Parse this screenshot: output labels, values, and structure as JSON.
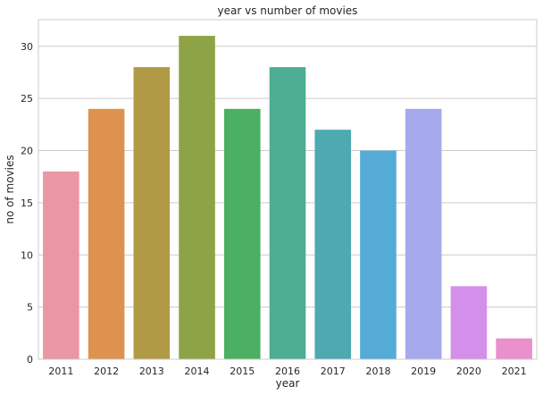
{
  "chart_data": {
    "type": "bar",
    "title": "year vs number of movies",
    "xlabel": "year",
    "ylabel": "no of movies",
    "categories": [
      "2011",
      "2012",
      "2013",
      "2014",
      "2015",
      "2016",
      "2017",
      "2018",
      "2019",
      "2020",
      "2021"
    ],
    "values": [
      18,
      24,
      28,
      31,
      24,
      28,
      22,
      20,
      24,
      7,
      2
    ],
    "colors": [
      "#ea96a3",
      "#de924f",
      "#b19a46",
      "#8ea345",
      "#4baf64",
      "#4cae92",
      "#4daab0",
      "#54abd6",
      "#a6a9ec",
      "#d48feb",
      "#e990cd"
    ],
    "yticks": [
      0,
      5,
      10,
      15,
      20,
      25,
      30
    ],
    "ylim": [
      0,
      32.55
    ],
    "grid": true,
    "grid_color": "#cccccc",
    "background": "#ffffff"
  }
}
